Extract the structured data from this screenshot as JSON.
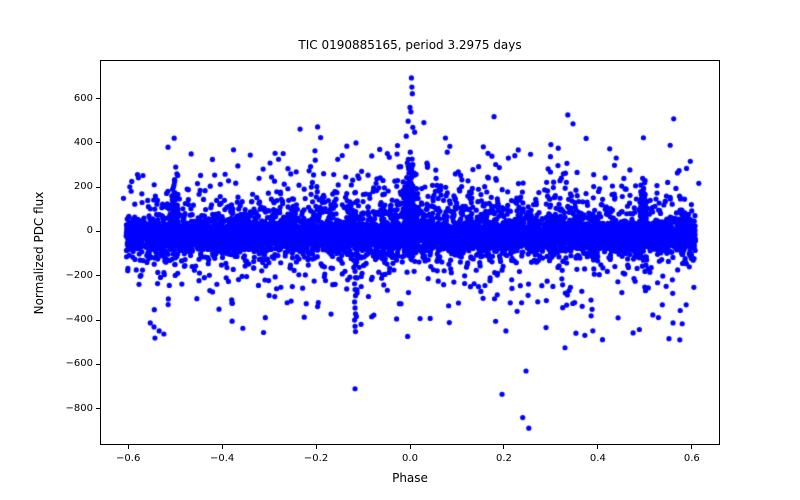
{
  "chart_data": {
    "type": "scatter",
    "title": "TIC 0190885165, period 3.2975 days",
    "xlabel": "Phase",
    "ylabel": "Normalized PDC flux",
    "xlim": [
      -0.66,
      0.66
    ],
    "ylim": [
      -964,
      774
    ],
    "grid": false,
    "legend": "none",
    "xticks": [
      -0.6,
      -0.4,
      -0.2,
      0.0,
      0.2,
      0.4,
      0.6
    ],
    "xtick_labels": [
      "−0.6",
      "−0.4",
      "−0.2",
      "0.0",
      "0.2",
      "0.4",
      "0.6"
    ],
    "yticks": [
      600,
      400,
      200,
      0,
      -200,
      -400,
      -600,
      -800
    ],
    "ytick_labels": [
      "600",
      "400",
      "200",
      "0",
      "−200",
      "−400",
      "−600",
      "−800"
    ],
    "marker_color": "#0000ff",
    "marker_radius_px": 2.6,
    "axis_color": "#000000",
    "seed": 42,
    "description": "Phase-folded TESS light curve: dense noise band centered near flux 0 spanning phase -0.6..0.6; upward flux spikes at phases -0.5, 0.0 and +0.5; broad cloud of positive outliers (100-520) densest near phase 0; negative outliers down to about -490 at all phases; a descending streak of points near phase -0.117 reaching -460 with one point at -710; extreme points up to +690 at phase 0 and down to -890 near phase 0.25.",
    "generator_components": [
      {
        "kind": "band",
        "n": 6200,
        "x_min": -0.605,
        "x_max": 0.608,
        "mean": -18,
        "sigma": 40,
        "tail_frac": 0.12,
        "tail_sigma": 72
      },
      {
        "kind": "bump_up",
        "n": 430,
        "x_spread": 0.63,
        "f_min": 75,
        "f_scale": 85,
        "f_max": 430
      },
      {
        "kind": "outliers_up",
        "n": 150,
        "x_min": -0.605,
        "x_max": 0.608,
        "f_min": 100,
        "f_scale": 105,
        "f_max": 520
      },
      {
        "kind": "outliers_down",
        "n": 300,
        "x_min": -0.605,
        "x_max": 0.608,
        "f_min": -110,
        "f_scale": 110,
        "f_max": -490
      },
      {
        "kind": "spike",
        "x0": -0.5,
        "xsigma": 0.0032,
        "n": 115,
        "f_base": 10,
        "f_scale": 65,
        "f_max": 265
      },
      {
        "kind": "spike",
        "x0": 0.497,
        "xsigma": 0.0032,
        "n": 115,
        "f_base": 10,
        "f_scale": 65,
        "f_max": 265
      },
      {
        "kind": "spike",
        "x0": 0.0,
        "xsigma": 0.0055,
        "n": 240,
        "f_base": 15,
        "f_scale": 90,
        "f_max": 360
      },
      {
        "kind": "spike_down",
        "x0": 0.0,
        "xsigma": 0.004,
        "n": 25,
        "f_base": -15,
        "f_scale": 50,
        "f_max": -230
      }
    ],
    "notable_points": [
      [
        0.003,
        693
      ],
      [
        0.004,
        652
      ],
      [
        0.005,
        622
      ],
      [
        0.0,
        560
      ],
      [
        0.002,
        540
      ],
      [
        -0.004,
        498
      ],
      [
        0.006,
        470
      ],
      [
        0.01,
        448
      ],
      [
        -0.008,
        430
      ],
      [
        0.179,
        518
      ],
      [
        0.336,
        526
      ],
      [
        0.347,
        486
      ],
      [
        0.375,
        420
      ],
      [
        -0.502,
        421
      ],
      [
        0.497,
        423
      ],
      [
        -0.234,
        462
      ],
      [
        0.3,
        392
      ],
      [
        -0.27,
        352
      ],
      [
        -0.34,
        345
      ],
      [
        -0.116,
        -150
      ],
      [
        -0.117,
        -180
      ],
      [
        -0.116,
        -208
      ],
      [
        -0.118,
        -236
      ],
      [
        -0.117,
        -262
      ],
      [
        -0.116,
        -290
      ],
      [
        -0.118,
        -318
      ],
      [
        -0.117,
        -345
      ],
      [
        -0.116,
        -372
      ],
      [
        -0.118,
        -400
      ],
      [
        -0.117,
        -428
      ],
      [
        -0.116,
        -452
      ],
      [
        -0.117,
        -710
      ],
      [
        0.253,
        -888
      ],
      [
        0.24,
        -840
      ],
      [
        0.196,
        -735
      ],
      [
        0.247,
        -630
      ],
      [
        0.33,
        -525
      ],
      [
        -0.553,
        -413
      ],
      [
        -0.545,
        -431
      ],
      [
        -0.534,
        -449
      ],
      [
        -0.524,
        -463
      ],
      [
        -0.543,
        -481
      ],
      [
        0.443,
        -390
      ],
      [
        0.475,
        -458
      ],
      [
        0.517,
        -377
      ],
      [
        0.56,
        -413
      ]
    ]
  }
}
